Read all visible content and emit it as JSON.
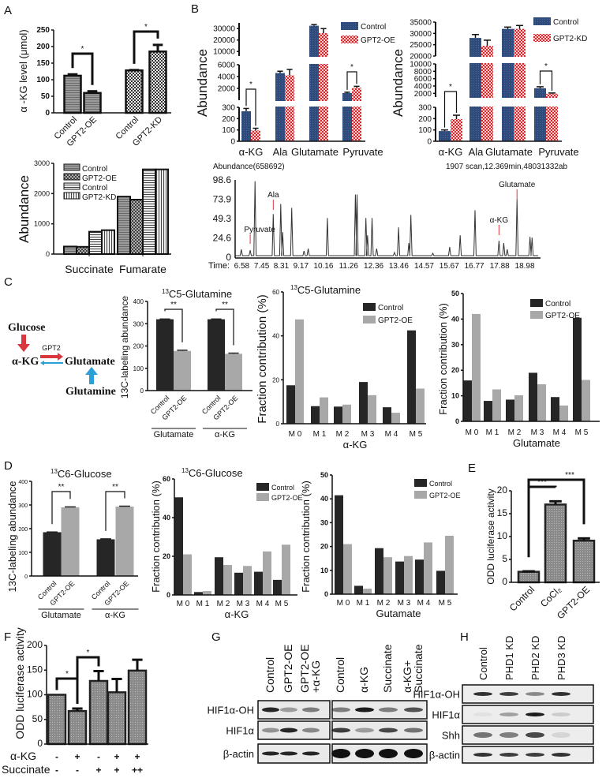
{
  "panels": [
    "A",
    "B",
    "C",
    "D",
    "E",
    "F",
    "G",
    "H"
  ],
  "diagram": {
    "glucose": "Glucose",
    "akg": "α-KG",
    "enzyme": "GPT2",
    "glutamate": "Glutamate",
    "glutamine": "Glutamine",
    "colors": {
      "glucose": "#d9363e",
      "glutamine": "#2a9fd8"
    }
  },
  "colors": {
    "control_dark": "#262626",
    "gpt2_gray": "#a8a8a8",
    "b_control": "#2f4b7c",
    "b_gpt2": "#d8262c",
    "annotation_red": "#d9363e"
  },
  "chart_data": [
    {
      "panel": "A",
      "type": "bar",
      "categories": [
        "Control",
        "GPT2-OE",
        "Control",
        "GPT2-KD"
      ],
      "values": [
        112,
        60,
        128,
        185
      ],
      "errors": [
        4,
        5,
        1,
        20
      ],
      "ylabel": "α -KG level (μmol)",
      "ylim": [
        0,
        250
      ],
      "yticks": [
        0,
        50,
        100,
        150,
        200,
        250
      ],
      "significance": [
        {
          "bars": [
            0,
            1
          ],
          "label": "*"
        },
        {
          "bars": [
            2,
            3
          ],
          "label": "*"
        }
      ]
    },
    {
      "panel": "A",
      "type": "bar",
      "categories": [
        "Succinate",
        "Fumarate"
      ],
      "series": [
        {
          "name": "Control",
          "values": [
            250,
            1900
          ]
        },
        {
          "name": "GPT2-OE",
          "values": [
            240,
            1800
          ]
        },
        {
          "name": "Control",
          "values": [
            740,
            2800
          ]
        },
        {
          "name": "GPT2-KD",
          "values": [
            790,
            2800
          ]
        }
      ],
      "ylabel": "Abundance",
      "ylim": [
        0,
        3000
      ],
      "yticks": [
        0,
        1000,
        2000,
        3000
      ],
      "legend": "top-left"
    },
    {
      "panel": "B",
      "type": "bar",
      "categories": [
        "α-KG",
        "Ala",
        "Glutamate",
        "Pyruvate"
      ],
      "series": [
        {
          "name": "Control",
          "values": [
            265,
            4600,
            32500,
            1200
          ],
          "errors": [
            25,
            300,
            1000,
            150
          ]
        },
        {
          "name": "GPT2-OE",
          "values": [
            95,
            4200,
            26000,
            2100
          ],
          "errors": [
            20,
            1000,
            4000,
            250
          ]
        }
      ],
      "ylabel": "Abundance",
      "y_segments": [
        {
          "range": [
            0,
            300
          ],
          "ticks": [
            0,
            100,
            200,
            300
          ]
        },
        {
          "range": [
            0,
            6000
          ],
          "ticks": [
            2000,
            4000,
            6000
          ]
        },
        {
          "range": [
            6000,
            35000
          ],
          "ticks": [
            10000,
            20000,
            30000
          ]
        }
      ],
      "significance": [
        {
          "bars": [
            0,
            1
          ],
          "label": "*"
        },
        {
          "bars": [
            6,
            7
          ],
          "label": "*"
        }
      ],
      "legend": "top-right"
    },
    {
      "panel": "B",
      "type": "bar",
      "categories": [
        "α-KG",
        "Ala",
        "Glutamate",
        "Pyruvate"
      ],
      "series": [
        {
          "name": "Control",
          "values": [
            90,
            28000,
            32000,
            3400
          ],
          "errors": [
            10,
            1500,
            800,
            400
          ]
        },
        {
          "name": "GPT2-KD",
          "values": [
            195,
            24500,
            32000,
            1900
          ],
          "errors": [
            35,
            2500,
            1500,
            200
          ]
        }
      ],
      "ylabel": "Abundance",
      "y_segments": [
        {
          "range": [
            0,
            300
          ],
          "ticks": [
            0,
            100,
            200,
            300
          ]
        },
        {
          "range": [
            1000,
            10000
          ],
          "ticks": [
            2000,
            4000,
            6000,
            8000,
            10000
          ]
        },
        {
          "range": [
            20000,
            35000
          ],
          "ticks": [
            20000,
            25000,
            30000,
            35000
          ]
        }
      ],
      "significance": [
        {
          "bars": [
            0,
            1
          ],
          "label": "*"
        },
        {
          "bars": [
            6,
            7
          ],
          "label": "*"
        }
      ],
      "legend": "top-right"
    },
    {
      "panel": "B",
      "type": "line",
      "title": "Abundance(658692)",
      "subtitle": "1907 scan,12.369min,48031332ab",
      "xlabel": "Time:",
      "xlim": [
        6.29,
        19.67
      ],
      "ylim": [
        0,
        98.6
      ],
      "xticks": [
        6.58,
        7.45,
        8.31,
        9.17,
        10.16,
        11.26,
        12.36,
        13.46,
        14.57,
        15.67,
        16.77,
        17.88,
        18.98
      ],
      "yticks": [
        0,
        24.6,
        49.3,
        73.9,
        98.6
      ],
      "peaks": [
        [
          6.56,
          10
        ],
        [
          6.95,
          9
        ],
        [
          7.16,
          97
        ],
        [
          7.96,
          55
        ],
        [
          8.29,
          68
        ],
        [
          8.37,
          32
        ],
        [
          8.77,
          63
        ],
        [
          9.31,
          8
        ],
        [
          9.49,
          11
        ],
        [
          10.33,
          50
        ],
        [
          11.56,
          80
        ],
        [
          11.63,
          80
        ],
        [
          12.02,
          50
        ],
        [
          12.09,
          28
        ],
        [
          12.29,
          50
        ],
        [
          12.49,
          11
        ],
        [
          13.27,
          6
        ],
        [
          13.45,
          38
        ],
        [
          13.9,
          18
        ],
        [
          13.99,
          54
        ],
        [
          14.95,
          5
        ],
        [
          15.69,
          13
        ],
        [
          16.15,
          28
        ],
        [
          16.8,
          60
        ],
        [
          17.85,
          21
        ],
        [
          18.06,
          18
        ],
        [
          18.21,
          10
        ],
        [
          18.64,
          74
        ],
        [
          19.21,
          26
        ],
        [
          19.3,
          25
        ]
      ],
      "annotations": [
        {
          "label": "Pyruvate",
          "x": 6.95
        },
        {
          "label": "Ala",
          "x": 7.96
        },
        {
          "label": "α-KG",
          "x": 17.85
        },
        {
          "label": "Glutamate",
          "x": 18.64
        }
      ]
    },
    {
      "panel": "C",
      "type": "bar",
      "title_sup": "13",
      "title": "C5-Glutamine",
      "categories": [
        "Control",
        "GPT2-OE",
        "Control",
        "GPT2-OE"
      ],
      "groups": [
        "Glutamate",
        "α-KG"
      ],
      "values": [
        320,
        178,
        320,
        165
      ],
      "errors": [
        1,
        3,
        1,
        3
      ],
      "ylabel": "13C-labeling abundance",
      "ylim": [
        0,
        400
      ],
      "yticks": [
        0,
        100,
        200,
        300,
        400
      ],
      "significance": [
        {
          "bars": [
            0,
            1
          ],
          "label": "**"
        },
        {
          "bars": [
            2,
            3
          ],
          "label": "**"
        }
      ]
    },
    {
      "panel": "C",
      "type": "bar",
      "title_sup": "13",
      "title": "C5-Glutamine",
      "categories": [
        "M 0",
        "M 1",
        "M 2",
        "M 3",
        "M 4",
        "M 5"
      ],
      "xlabel": "α-KG",
      "series": [
        {
          "name": "Control",
          "values": [
            17.5,
            8,
            7.8,
            19,
            7.5,
            42.5
          ]
        },
        {
          "name": "GPT2-OE",
          "values": [
            47.5,
            12,
            8.7,
            13,
            5,
            16
          ]
        }
      ],
      "ylabel": "Fraction contribution (%)",
      "ylim": [
        0,
        60
      ],
      "yticks": [
        0,
        20,
        40,
        60
      ],
      "legend": "top-right"
    },
    {
      "panel": "C",
      "type": "bar",
      "categories": [
        "M 0",
        "M 1",
        "M 2",
        "M 3",
        "M 4",
        "M 5"
      ],
      "xlabel": "Glutamate",
      "series": [
        {
          "name": "Control",
          "values": [
            16,
            8,
            8.5,
            19,
            9.5,
            40.5
          ]
        },
        {
          "name": "GPT2-OE",
          "values": [
            42,
            12.5,
            10.2,
            14.5,
            6.2,
            16.2
          ]
        }
      ],
      "ylabel": "Fraction contribution (%)",
      "ylim": [
        0,
        50
      ],
      "yticks": [
        0,
        10,
        20,
        30,
        40,
        50
      ],
      "legend": "top-right"
    },
    {
      "panel": "D",
      "type": "bar",
      "title_sup": "13",
      "title": "C6-Glucose",
      "categories": [
        "Control",
        "GPT2-OE",
        "Control",
        "GPT2-OE"
      ],
      "groups": [
        "Glutamate",
        "α-KG"
      ],
      "values": [
        185,
        290,
        155,
        293
      ],
      "errors": [
        1,
        2,
        2,
        2
      ],
      "ylabel": "13C-labeling abundance",
      "ylim": [
        0,
        400
      ],
      "yticks": [
        0,
        100,
        200,
        300,
        400
      ],
      "significance": [
        {
          "bars": [
            0,
            1
          ],
          "label": "**"
        },
        {
          "bars": [
            2,
            3
          ],
          "label": "**"
        }
      ]
    },
    {
      "panel": "D",
      "type": "bar",
      "title_sup": "13",
      "title": "C6-Glucose",
      "categories": [
        "M 0",
        "M 1",
        "M 2",
        "M 3",
        "M 4",
        "M 5"
      ],
      "xlabel": "α-KG",
      "series": [
        {
          "name": "Control",
          "values": [
            50.5,
            1.5,
            19.5,
            11.5,
            12,
            7.8
          ]
        },
        {
          "name": "GPT2-OE",
          "values": [
            21,
            2,
            15.5,
            15,
            22.5,
            26
          ]
        }
      ],
      "ylabel": "Fraction contribution (%)",
      "ylim": [
        0,
        60
      ],
      "yticks": [
        0,
        20,
        40,
        60
      ],
      "legend": "top-right"
    },
    {
      "panel": "D",
      "type": "bar",
      "categories": [
        "M 0",
        "M 1",
        "M 2",
        "M 3",
        "M 4",
        "M 5"
      ],
      "xlabel": "Gutamate",
      "series": [
        {
          "name": "Control",
          "values": [
            41.5,
            3.5,
            19.3,
            13.7,
            14.5,
            9.8
          ]
        },
        {
          "name": "GPT2-OE",
          "values": [
            21,
            2.3,
            15.5,
            16,
            21.7,
            24.5
          ]
        }
      ],
      "ylabel": "Fraction contribution (%)",
      "ylim": [
        0,
        50
      ],
      "yticks": [
        0,
        10,
        20,
        30,
        40,
        50
      ],
      "legend": "top-right"
    },
    {
      "panel": "E",
      "type": "bar",
      "categories": [
        "Control",
        "CoCl₂",
        "GPT2-OE"
      ],
      "values": [
        2.3,
        17,
        9.1
      ],
      "errors": [
        0.1,
        0.7,
        0.5
      ],
      "ylabel": "ODD luciferase activity",
      "ylim": [
        0,
        20
      ],
      "yticks": [
        0,
        5,
        10,
        15,
        20
      ],
      "significance": [
        {
          "bars": [
            0,
            1
          ],
          "label": "***"
        },
        {
          "bars": [
            0,
            2
          ],
          "label": "***"
        }
      ]
    },
    {
      "panel": "F",
      "type": "bar",
      "values": [
        100,
        67,
        128,
        105,
        149
      ],
      "errors": [
        0,
        5,
        20,
        27,
        22
      ],
      "ylabel": "ODD luciferase activity",
      "ylim": [
        0,
        200
      ],
      "yticks": [
        0,
        50,
        100,
        150,
        200
      ],
      "treatments": [
        {
          "label": "α-KG",
          "values": [
            "-",
            "+",
            "-",
            "+",
            "+"
          ]
        },
        {
          "label": "Succinate",
          "values": [
            "-",
            "-",
            "+",
            "+",
            "++"
          ]
        }
      ],
      "significance": [
        {
          "bars": [
            0,
            1
          ],
          "label": "*"
        },
        {
          "bars": [
            1,
            2
          ],
          "label": "*"
        }
      ]
    }
  ],
  "blot_G": {
    "lanes_left": [
      [
        "Control"
      ],
      [
        "GPT2-OE"
      ],
      [
        "GPT2-OE",
        "+α-KG"
      ]
    ],
    "lanes_right": [
      [
        "Control"
      ],
      [
        "α-KG"
      ],
      [
        "Succinate"
      ],
      [
        "α-KG+",
        "Succinate"
      ]
    ],
    "rows": [
      {
        "label": "HIF1α-OH"
      },
      {
        "label": "HIF1α"
      },
      {
        "label": "β-actin",
        "right": [
          1,
          1,
          1,
          1
        ]
      }
    ]
  },
  "blot_H": {
    "lanes": [
      "Control",
      "PHD1 KD",
      "PHD2 KD",
      "PHD3 KD"
    ],
    "rows": [
      {
        "label": "HIF1α-OH",
        "bands": [
          0.85,
          0.8,
          0.45,
          0.85
        ]
      },
      {
        "label": "HIF1α",
        "bands": [
          0.05,
          0.35,
          0.95,
          0.15
        ]
      },
      {
        "label": "Shh",
        "bands": [
          0.55,
          0.5,
          0.75,
          0.1
        ]
      },
      {
        "label": "β-actin",
        "bands": [
          0.85,
          0.8,
          0.8,
          0.85
        ]
      }
    ]
  }
}
